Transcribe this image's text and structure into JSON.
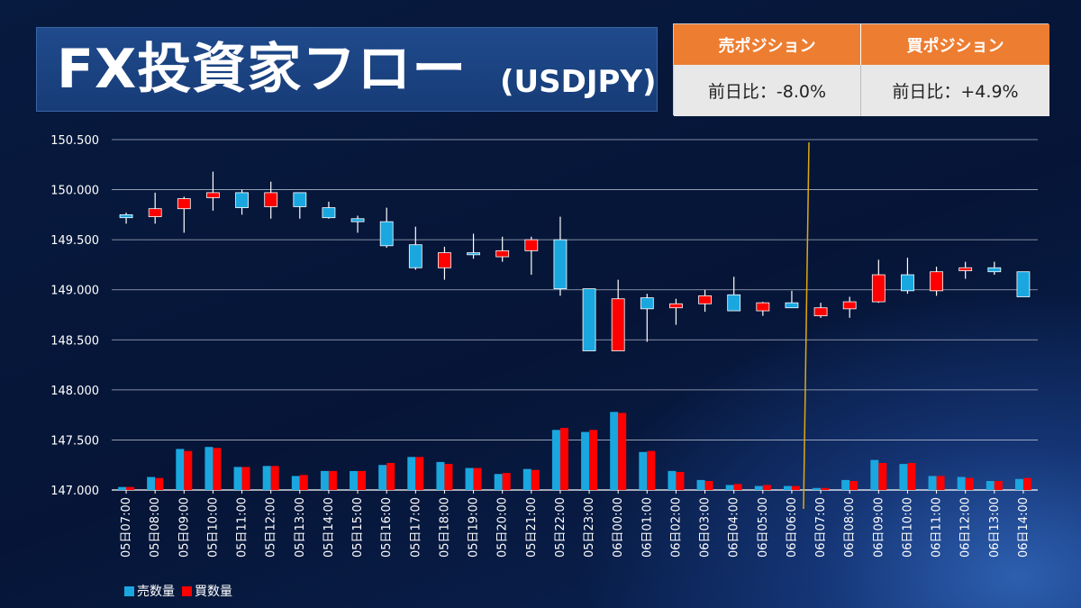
{
  "header": {
    "title": "FX投資家フロー",
    "pair": "(USDJPY)"
  },
  "positions": {
    "sell": {
      "label": "売ポジション",
      "value": "前日比：-8.0%"
    },
    "buy": {
      "label": "買ポジション",
      "value": "前日比：+4.9%"
    }
  },
  "legend": {
    "sell_volume": "売数量",
    "buy_volume": "買数量"
  },
  "colors": {
    "sell": "#1aa7e0",
    "buy": "#ff0000",
    "header_orange": "#ed7d31",
    "divider": "#e0a810"
  },
  "chart_data": {
    "type": "candlestick",
    "categories": [
      "05日07:00",
      "05日08:00",
      "05日09:00",
      "05日10:00",
      "05日11:00",
      "05日12:00",
      "05日13:00",
      "05日14:00",
      "05日15:00",
      "05日16:00",
      "05日17:00",
      "05日18:00",
      "05日19:00",
      "05日20:00",
      "05日21:00",
      "05日22:00",
      "05日23:00",
      "06日00:00",
      "06日01:00",
      "06日02:00",
      "06日03:00",
      "06日04:00",
      "06日05:00",
      "06日06:00",
      "06日07:00",
      "06日08:00",
      "06日09:00",
      "06日10:00",
      "06日11:00",
      "06日12:00",
      "06日13:00",
      "06日14:00"
    ],
    "y_ticks": [
      "147.000",
      "147.500",
      "148.000",
      "148.500",
      "149.000",
      "149.500",
      "150.000",
      "150.500"
    ],
    "ylim": [
      147.0,
      150.5
    ],
    "grid": true,
    "divider_after": "06日06:00",
    "candles": [
      {
        "open": 149.75,
        "high": 149.77,
        "low": 149.66,
        "close": 149.72
      },
      {
        "open": 149.73,
        "high": 149.97,
        "low": 149.66,
        "close": 149.81
      },
      {
        "open": 149.81,
        "high": 149.93,
        "low": 149.57,
        "close": 149.91
      },
      {
        "open": 149.92,
        "high": 150.18,
        "low": 149.79,
        "close": 149.97
      },
      {
        "open": 149.97,
        "high": 150.0,
        "low": 149.75,
        "close": 149.82
      },
      {
        "open": 149.83,
        "high": 150.08,
        "low": 149.71,
        "close": 149.97
      },
      {
        "open": 149.97,
        "high": 149.97,
        "low": 149.71,
        "close": 149.83
      },
      {
        "open": 149.82,
        "high": 149.88,
        "low": 149.71,
        "close": 149.72
      },
      {
        "open": 149.71,
        "high": 149.74,
        "low": 149.57,
        "close": 149.68
      },
      {
        "open": 149.68,
        "high": 149.82,
        "low": 149.42,
        "close": 149.44
      },
      {
        "open": 149.45,
        "high": 149.63,
        "low": 149.2,
        "close": 149.22
      },
      {
        "open": 149.22,
        "high": 149.43,
        "low": 149.1,
        "close": 149.37
      },
      {
        "open": 149.37,
        "high": 149.56,
        "low": 149.31,
        "close": 149.35
      },
      {
        "open": 149.33,
        "high": 149.53,
        "low": 149.28,
        "close": 149.39
      },
      {
        "open": 149.39,
        "high": 149.53,
        "low": 149.15,
        "close": 149.5
      },
      {
        "open": 149.5,
        "high": 149.73,
        "low": 148.94,
        "close": 149.01
      },
      {
        "open": 149.01,
        "high": 149.01,
        "low": 148.39,
        "close": 148.39
      },
      {
        "open": 148.39,
        "high": 149.1,
        "low": 148.39,
        "close": 148.91
      },
      {
        "open": 148.92,
        "high": 148.96,
        "low": 148.48,
        "close": 148.81
      },
      {
        "open": 148.82,
        "high": 148.91,
        "low": 148.65,
        "close": 148.86
      },
      {
        "open": 148.86,
        "high": 149.0,
        "low": 148.78,
        "close": 148.94
      },
      {
        "open": 148.95,
        "high": 149.13,
        "low": 148.79,
        "close": 148.79
      },
      {
        "open": 148.79,
        "high": 148.88,
        "low": 148.74,
        "close": 148.87
      },
      {
        "open": 148.87,
        "high": 148.99,
        "low": 148.82,
        "close": 148.82
      },
      {
        "open": 148.74,
        "high": 148.87,
        "low": 148.72,
        "close": 148.82
      },
      {
        "open": 148.81,
        "high": 148.93,
        "low": 148.72,
        "close": 148.88
      },
      {
        "open": 148.88,
        "high": 149.3,
        "low": 148.87,
        "close": 149.15
      },
      {
        "open": 149.15,
        "high": 149.32,
        "low": 148.96,
        "close": 148.99
      },
      {
        "open": 148.99,
        "high": 149.23,
        "low": 148.94,
        "close": 149.18
      },
      {
        "open": 149.19,
        "high": 149.28,
        "low": 149.11,
        "close": 149.22
      },
      {
        "open": 149.22,
        "high": 149.28,
        "low": 149.15,
        "close": 149.18
      },
      {
        "open": 149.18,
        "high": 149.18,
        "low": 148.93,
        "close": 148.93
      }
    ],
    "volume_series": [
      {
        "name": "売数量",
        "values": [
          0.03,
          0.13,
          0.41,
          0.43,
          0.23,
          0.24,
          0.14,
          0.19,
          0.19,
          0.25,
          0.33,
          0.28,
          0.22,
          0.16,
          0.21,
          0.6,
          0.58,
          0.78,
          0.38,
          0.19,
          0.1,
          0.05,
          0.04,
          0.04,
          0.02,
          0.1,
          0.3,
          0.26,
          0.14,
          0.13,
          0.09,
          0.11
        ]
      },
      {
        "name": "買数量",
        "values": [
          0.03,
          0.12,
          0.39,
          0.42,
          0.23,
          0.24,
          0.15,
          0.19,
          0.19,
          0.27,
          0.33,
          0.26,
          0.22,
          0.17,
          0.2,
          0.62,
          0.6,
          0.77,
          0.39,
          0.18,
          0.09,
          0.06,
          0.05,
          0.04,
          0.02,
          0.09,
          0.27,
          0.27,
          0.14,
          0.12,
          0.09,
          0.12
        ]
      }
    ]
  }
}
